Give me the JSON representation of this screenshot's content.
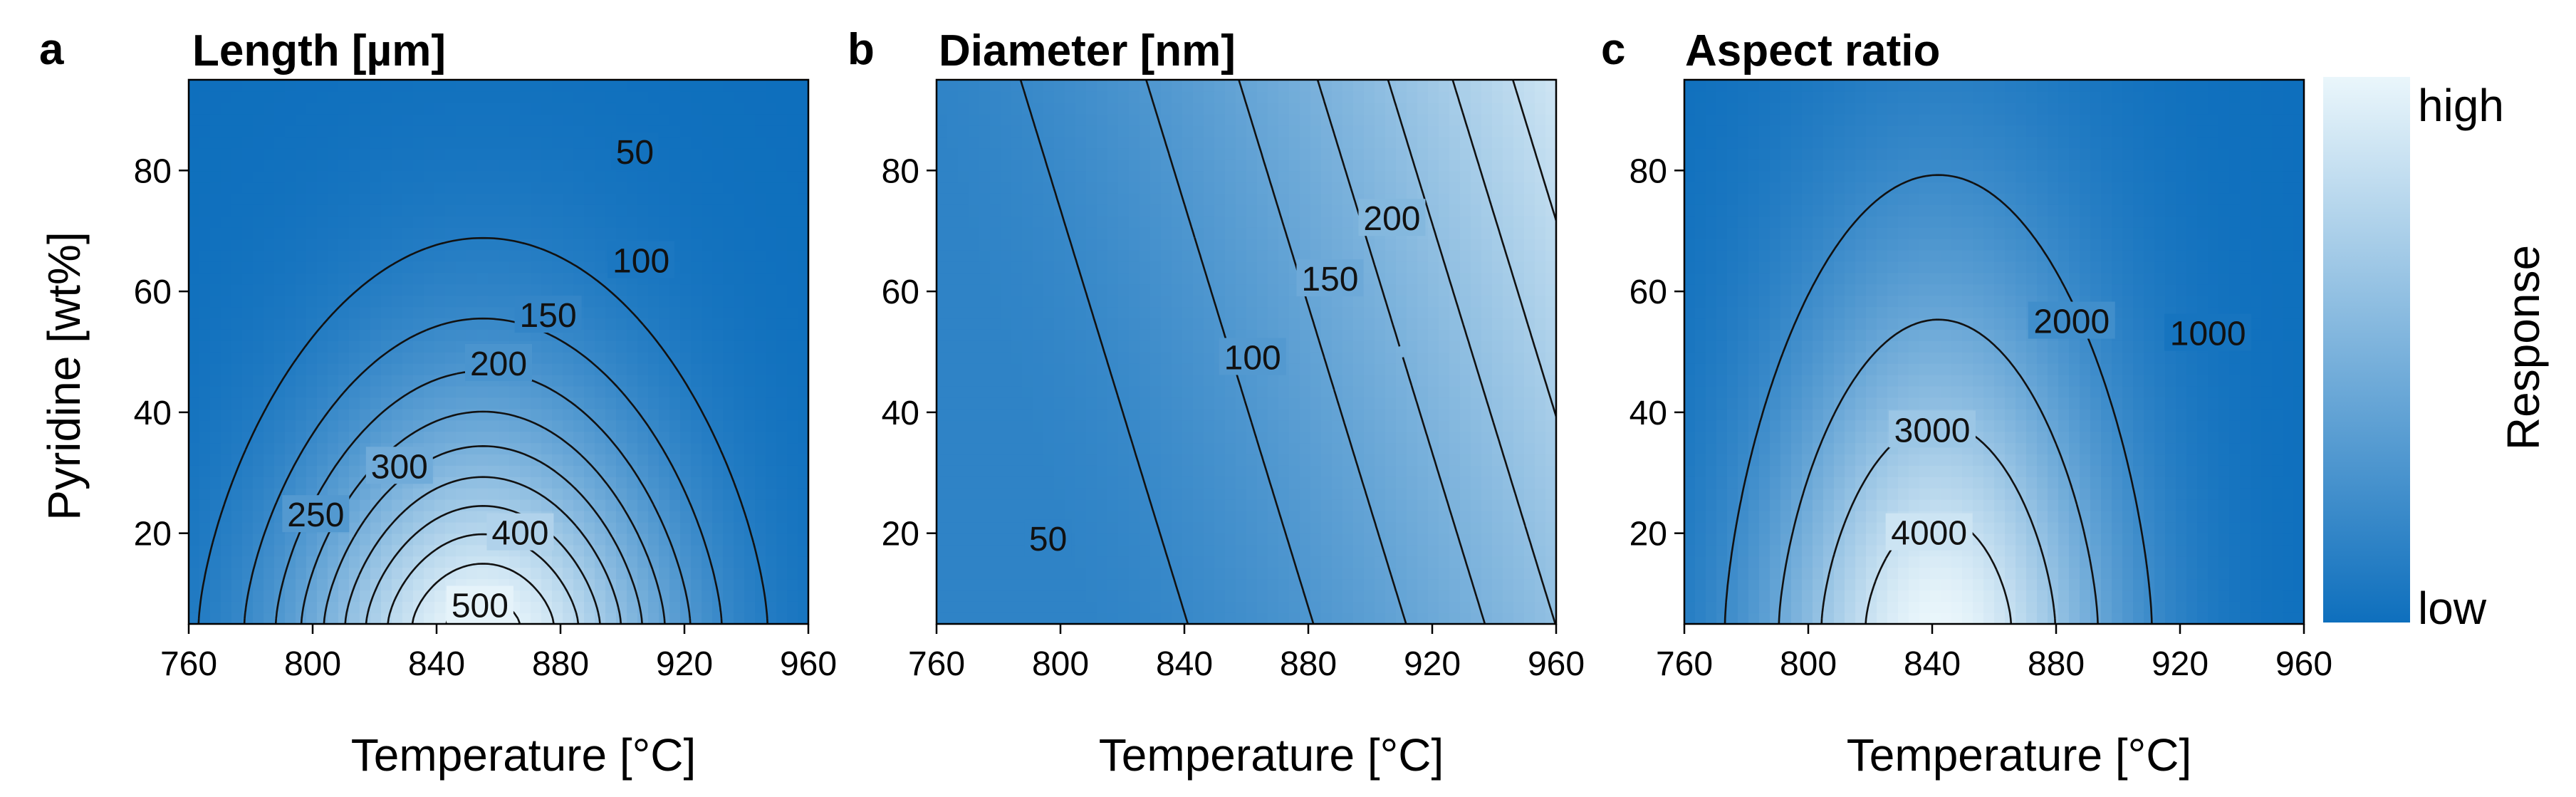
{
  "chart_data": [
    {
      "type": "contour",
      "letter": "a",
      "title": "Length [µm]",
      "xlabel": "Temperature [°C]",
      "ylabel": "Pyridine [wt%]",
      "xlim": [
        760,
        960
      ],
      "ylim": [
        5,
        95
      ],
      "xticks": [
        "760",
        "800",
        "840",
        "880",
        "920",
        "960"
      ],
      "yticks": [
        "20",
        "40",
        "60",
        "80"
      ],
      "contour_labels": [
        {
          "text": "50",
          "x": 904,
          "y": 83
        },
        {
          "text": "100",
          "x": 906,
          "y": 65
        },
        {
          "text": "150",
          "x": 876,
          "y": 56
        },
        {
          "text": "200",
          "x": 860,
          "y": 48
        },
        {
          "text": "250",
          "x": 801,
          "y": 23
        },
        {
          "text": "300",
          "x": 828,
          "y": 31
        },
        {
          "text": "400",
          "x": 867,
          "y": 20
        },
        {
          "text": "500",
          "x": 854,
          "y": 8
        }
      ]
    },
    {
      "type": "contour",
      "letter": "b",
      "title": "Diameter [nm]",
      "xlabel": "Temperature [°C]",
      "ylabel": "",
      "xlim": [
        760,
        960
      ],
      "ylim": [
        5,
        95
      ],
      "xticks": [
        "760",
        "800",
        "840",
        "880",
        "920",
        "960"
      ],
      "yticks": [
        "20",
        "40",
        "60",
        "80"
      ],
      "contour_labels": [
        {
          "text": "50",
          "x": 796,
          "y": 19
        },
        {
          "text": "100",
          "x": 862,
          "y": 49
        },
        {
          "text": "150",
          "x": 887,
          "y": 62
        },
        {
          "text": "200",
          "x": 907,
          "y": 72
        }
      ]
    },
    {
      "type": "contour",
      "letter": "c",
      "title": "Aspect ratio",
      "xlabel": "Temperature [°C]",
      "ylabel": "",
      "xlim": [
        760,
        960
      ],
      "ylim": [
        5,
        95
      ],
      "xticks": [
        "760",
        "800",
        "840",
        "880",
        "920",
        "960"
      ],
      "yticks": [
        "20",
        "40",
        "60",
        "80"
      ],
      "contour_labels": [
        {
          "text": "1000",
          "x": 929,
          "y": 53
        },
        {
          "text": "2000",
          "x": 885,
          "y": 55
        },
        {
          "text": "3000",
          "x": 840,
          "y": 37
        },
        {
          "text": "4000",
          "x": 839,
          "y": 20
        }
      ]
    }
  ],
  "colorbar": {
    "title": "Response",
    "high_label": "high",
    "low_label": "low",
    "high_color": "#eaf6fb",
    "low_color": "#0e6fbd"
  }
}
